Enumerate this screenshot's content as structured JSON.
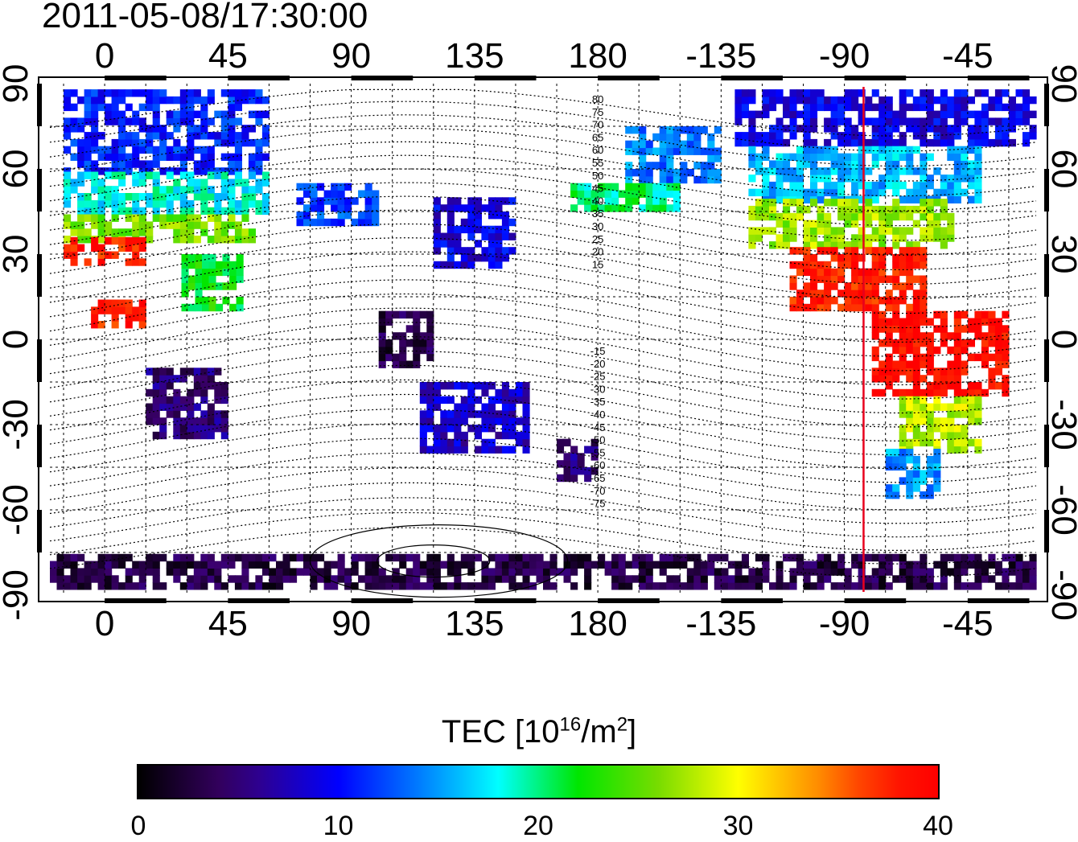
{
  "title": "2011-05-08/17:30:00",
  "map": {
    "lon_start": -20,
    "lon_end": 340,
    "lat_min": -90,
    "lat_max": 90,
    "x_ticks": [
      {
        "lon": 0,
        "label": "0"
      },
      {
        "lon": 45,
        "label": "45"
      },
      {
        "lon": 90,
        "label": "90"
      },
      {
        "lon": 135,
        "label": "135"
      },
      {
        "lon": 180,
        "label": "180"
      },
      {
        "lon": 225,
        "label": "-135"
      },
      {
        "lon": 270,
        "label": "-90"
      },
      {
        "lon": 315,
        "label": "-45"
      }
    ],
    "y_ticks": [
      {
        "lat": 90,
        "label": "90"
      },
      {
        "lat": 60,
        "label": "60"
      },
      {
        "lat": 30,
        "label": "30"
      },
      {
        "lat": 0,
        "label": "0"
      },
      {
        "lat": -30,
        "label": "-30"
      },
      {
        "lat": -60,
        "label": "-60"
      },
      {
        "lat": -90,
        "label": "-90"
      }
    ],
    "terminator_lon_label": "-83",
    "terminator_lon": 277,
    "mlat_labels_north": [
      "80",
      "75",
      "70",
      "65",
      "60",
      "55",
      "50",
      "45",
      "40",
      "35",
      "30",
      "25",
      "20",
      "15"
    ],
    "mlat_labels_south": [
      "-15",
      "-20",
      "-25",
      "-30",
      "-35",
      "-40",
      "-45",
      "-50",
      "-55",
      "-60",
      "-65",
      "-70",
      "-75"
    ],
    "tec_regions": [
      {
        "lon0": -15,
        "lon1": 60,
        "lat0": 58,
        "lat1": 88,
        "tec": 11
      },
      {
        "lon0": -15,
        "lon1": 60,
        "lat0": 44,
        "lat1": 58,
        "tec": 18
      },
      {
        "lon0": -15,
        "lon1": 55,
        "lat0": 34,
        "lat1": 44,
        "tec": 26
      },
      {
        "lon0": -15,
        "lon1": 15,
        "lat0": 26,
        "lat1": 34,
        "tec": 38
      },
      {
        "lon0": -5,
        "lon1": 15,
        "lat0": 4,
        "lat1": 14,
        "tec": 38
      },
      {
        "lon0": 28,
        "lon1": 50,
        "lat0": 10,
        "lat1": 30,
        "tec": 22
      },
      {
        "lon0": 15,
        "lon1": 45,
        "lat0": -35,
        "lat1": -10,
        "tec": 5
      },
      {
        "lon0": 70,
        "lon1": 100,
        "lat0": 40,
        "lat1": 55,
        "tec": 12
      },
      {
        "lon0": 120,
        "lon1": 150,
        "lat0": 25,
        "lat1": 50,
        "tec": 9
      },
      {
        "lon0": 100,
        "lon1": 120,
        "lat0": -10,
        "lat1": 10,
        "tec": 3
      },
      {
        "lon0": 115,
        "lon1": 155,
        "lat0": -40,
        "lat1": -15,
        "tec": 8
      },
      {
        "lon0": 165,
        "lon1": 180,
        "lat0": -50,
        "lat1": -35,
        "tec": 5
      },
      {
        "lon0": 190,
        "lon1": 225,
        "lat0": 55,
        "lat1": 75,
        "tec": 14
      },
      {
        "lon0": 170,
        "lon1": 210,
        "lat0": 45,
        "lat1": 55,
        "tec": 20
      },
      {
        "lon0": 230,
        "lon1": 340,
        "lat0": 68,
        "lat1": 88,
        "tec": 9
      },
      {
        "lon0": 235,
        "lon1": 320,
        "lat0": 48,
        "lat1": 68,
        "tec": 16
      },
      {
        "lon0": 235,
        "lon1": 310,
        "lat0": 32,
        "lat1": 48,
        "tec": 27
      },
      {
        "lon0": 250,
        "lon1": 300,
        "lat0": 10,
        "lat1": 32,
        "tec": 38
      },
      {
        "lon0": 280,
        "lon1": 330,
        "lat0": -20,
        "lat1": 10,
        "tec": 39
      },
      {
        "lon0": 290,
        "lon1": 320,
        "lat0": -40,
        "lat1": -20,
        "tec": 28
      },
      {
        "lon0": 285,
        "lon1": 305,
        "lat0": -56,
        "lat1": -40,
        "tec": 15
      },
      {
        "lon0": -20,
        "lon1": 340,
        "lat0": -88,
        "lat1": -77,
        "tec": 3
      }
    ]
  },
  "colorbar": {
    "label_prefix": "TEC  [10",
    "label_sup1": "16",
    "label_mid": "/m",
    "label_sup2": "2",
    "label_suffix": "]",
    "min": 0,
    "max": 40,
    "ticks": [
      "0",
      "10",
      "20",
      "30",
      "40"
    ]
  }
}
